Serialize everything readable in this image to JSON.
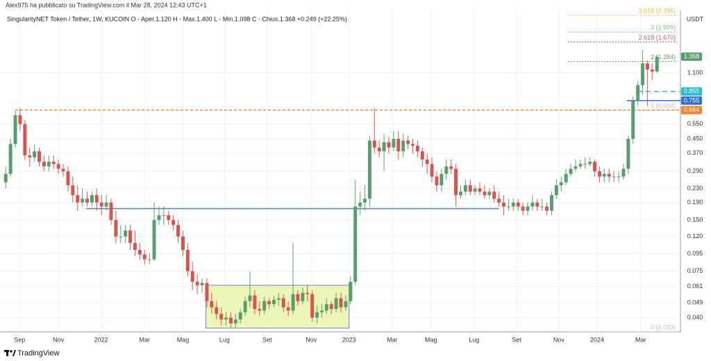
{
  "header": {
    "text": "Alex975 ha pubblicato su TradingView.com il Mar 28, 2024 12:43 UTC+1"
  },
  "footer": {
    "brand": "TradingView"
  },
  "chart_data": {
    "type": "candlestick",
    "title": "SingularityNET Token / Tether, 1W, KUCOIN  O - Aper.1.120  H - Max.1.400  L - Min.1.098  C - Chius.1.368  +0.249 (+22.25%)",
    "y_unit": "USDT",
    "log_scale": true,
    "grid": true,
    "up_color": "#5a9e6f",
    "down_color": "#d9544f",
    "xlim": [
      -1.2,
      140.9
    ],
    "xticks": [
      {
        "value": 2.9,
        "label": "Sep"
      },
      {
        "value": 11.0,
        "label": "Nov"
      },
      {
        "value": 19.9,
        "label": "2022"
      },
      {
        "value": 29.0,
        "label": "Mar"
      },
      {
        "value": 37.0,
        "label": "Mag"
      },
      {
        "value": 45.7,
        "label": "Lug"
      },
      {
        "value": 54.6,
        "label": "Set"
      },
      {
        "value": 63.8,
        "label": "Nov"
      },
      {
        "value": 71.7,
        "label": "2023"
      },
      {
        "value": 80.7,
        "label": "Mar"
      },
      {
        "value": 88.8,
        "label": "Mag"
      },
      {
        "value": 97.8,
        "label": "Lug"
      },
      {
        "value": 106.7,
        "label": "Set"
      },
      {
        "value": 115.5,
        "label": "Nov"
      },
      {
        "value": 123.5,
        "label": "2024"
      },
      {
        "value": 132.6,
        "label": "Mar"
      }
    ],
    "ylim": [
      0.033,
      2.56
    ],
    "yticks": [
      {
        "value": 0.04,
        "label": "0.040"
      },
      0.049,
      0.061,
      0.075,
      0.095,
      {
        "value": 0.12,
        "label": "0.120"
      },
      {
        "value": 0.15,
        "label": "0.150"
      },
      {
        "value": 0.19,
        "label": "0.190"
      },
      {
        "value": 0.23,
        "label": "0.230"
      },
      {
        "value": 0.29,
        "label": "0.290"
      },
      {
        "value": 0.37,
        "label": "0.370"
      },
      {
        "value": 0.45,
        "label": "0.450"
      },
      {
        "value": 0.55,
        "label": "0.550"
      },
      {
        "value": 1.1,
        "label": "1.100"
      }
    ],
    "open": [
      0.25,
      0.28,
      0.42,
      0.62,
      0.55,
      0.36,
      0.35,
      0.38,
      0.33,
      0.31,
      0.33,
      0.32,
      0.3,
      0.29,
      0.24,
      0.21,
      0.19,
      0.2,
      0.19,
      0.21,
      0.19,
      0.18,
      0.19,
      0.15,
      0.12,
      0.12,
      0.13,
      0.11,
      0.1,
      0.094,
      0.088,
      0.088,
      0.15,
      0.16,
      0.16,
      0.15,
      0.14,
      0.12,
      0.1,
      0.075,
      0.065,
      0.062,
      0.064,
      0.05,
      0.046,
      0.042,
      0.039,
      0.04,
      0.037,
      0.039,
      0.043,
      0.05,
      0.054,
      0.045,
      0.044,
      0.05,
      0.048,
      0.051,
      0.052,
      0.046,
      0.044,
      0.055,
      0.05,
      0.056,
      0.055,
      0.04,
      0.043,
      0.044,
      0.048,
      0.045,
      0.052,
      0.046,
      0.05,
      0.065,
      0.18,
      0.19,
      0.2,
      0.44,
      0.4,
      0.38,
      0.43,
      0.4,
      0.45,
      0.38,
      0.44,
      0.42,
      0.41,
      0.38,
      0.34,
      0.32,
      0.27,
      0.24,
      0.28,
      0.31,
      0.3,
      0.21,
      0.22,
      0.24,
      0.22,
      0.23,
      0.22,
      0.21,
      0.22,
      0.2,
      0.19,
      0.18,
      0.18,
      0.19,
      0.18,
      0.17,
      0.18,
      0.19,
      0.18,
      0.18,
      0.17,
      0.21,
      0.24,
      0.25,
      0.28,
      0.3,
      0.31,
      0.32,
      0.32,
      0.33,
      0.29,
      0.27,
      0.28,
      0.27,
      0.27,
      0.27,
      0.3,
      0.45,
      0.75,
      0.93,
      1.25,
      1.15,
      1.12
    ],
    "high": [
      0.31,
      0.45,
      0.66,
      0.68,
      0.58,
      0.4,
      0.42,
      0.4,
      0.36,
      0.36,
      0.36,
      0.34,
      0.32,
      0.31,
      0.27,
      0.24,
      0.23,
      0.22,
      0.22,
      0.23,
      0.21,
      0.21,
      0.2,
      0.17,
      0.14,
      0.14,
      0.14,
      0.13,
      0.11,
      0.1,
      0.096,
      0.19,
      0.18,
      0.18,
      0.17,
      0.16,
      0.15,
      0.13,
      0.11,
      0.085,
      0.072,
      0.068,
      0.068,
      0.056,
      0.05,
      0.046,
      0.043,
      0.043,
      0.042,
      0.045,
      0.053,
      0.075,
      0.058,
      0.05,
      0.053,
      0.052,
      0.054,
      0.056,
      0.055,
      0.05,
      0.11,
      0.058,
      0.06,
      0.062,
      0.058,
      0.047,
      0.048,
      0.052,
      0.05,
      0.056,
      0.056,
      0.054,
      0.07,
      0.26,
      0.22,
      0.24,
      0.47,
      0.68,
      0.44,
      0.48,
      0.46,
      0.5,
      0.5,
      0.48,
      0.47,
      0.45,
      0.44,
      0.4,
      0.37,
      0.35,
      0.29,
      0.3,
      0.34,
      0.34,
      0.32,
      0.24,
      0.26,
      0.26,
      0.24,
      0.25,
      0.24,
      0.23,
      0.24,
      0.22,
      0.21,
      0.2,
      0.2,
      0.2,
      0.19,
      0.19,
      0.21,
      0.2,
      0.2,
      0.19,
      0.22,
      0.26,
      0.27,
      0.3,
      0.32,
      0.34,
      0.34,
      0.35,
      0.35,
      0.34,
      0.31,
      0.3,
      0.3,
      0.29,
      0.29,
      0.32,
      0.47,
      0.8,
      0.98,
      1.5,
      1.3,
      1.25,
      1.4
    ],
    "low": [
      0.23,
      0.27,
      0.4,
      0.5,
      0.34,
      0.31,
      0.33,
      0.31,
      0.29,
      0.29,
      0.3,
      0.28,
      0.27,
      0.22,
      0.19,
      0.17,
      0.18,
      0.18,
      0.18,
      0.17,
      0.16,
      0.17,
      0.14,
      0.11,
      0.11,
      0.11,
      0.1,
      0.092,
      0.088,
      0.082,
      0.082,
      0.086,
      0.14,
      0.14,
      0.14,
      0.13,
      0.11,
      0.092,
      0.07,
      0.058,
      0.055,
      0.056,
      0.046,
      0.042,
      0.039,
      0.036,
      0.036,
      0.035,
      0.035,
      0.037,
      0.041,
      0.046,
      0.042,
      0.041,
      0.042,
      0.045,
      0.046,
      0.047,
      0.043,
      0.041,
      0.042,
      0.047,
      0.048,
      0.05,
      0.038,
      0.037,
      0.04,
      0.042,
      0.042,
      0.043,
      0.043,
      0.044,
      0.048,
      0.062,
      0.16,
      0.17,
      0.18,
      0.37,
      0.35,
      0.29,
      0.37,
      0.38,
      0.34,
      0.35,
      0.39,
      0.37,
      0.35,
      0.31,
      0.28,
      0.25,
      0.22,
      0.22,
      0.26,
      0.28,
      0.18,
      0.2,
      0.21,
      0.21,
      0.21,
      0.21,
      0.2,
      0.2,
      0.19,
      0.18,
      0.16,
      0.17,
      0.17,
      0.17,
      0.16,
      0.16,
      0.17,
      0.17,
      0.17,
      0.16,
      0.16,
      0.2,
      0.22,
      0.24,
      0.27,
      0.29,
      0.3,
      0.3,
      0.31,
      0.27,
      0.25,
      0.25,
      0.25,
      0.25,
      0.25,
      0.26,
      0.28,
      0.42,
      0.7,
      0.82,
      0.7,
      1.0,
      1.098
    ],
    "close": [
      0.28,
      0.42,
      0.62,
      0.55,
      0.36,
      0.35,
      0.38,
      0.33,
      0.31,
      0.33,
      0.32,
      0.3,
      0.29,
      0.24,
      0.21,
      0.19,
      0.2,
      0.19,
      0.21,
      0.19,
      0.18,
      0.19,
      0.15,
      0.12,
      0.12,
      0.13,
      0.11,
      0.1,
      0.094,
      0.088,
      0.088,
      0.15,
      0.16,
      0.16,
      0.15,
      0.14,
      0.12,
      0.1,
      0.075,
      0.065,
      0.062,
      0.064,
      0.05,
      0.046,
      0.042,
      0.039,
      0.04,
      0.037,
      0.039,
      0.043,
      0.05,
      0.054,
      0.045,
      0.044,
      0.05,
      0.048,
      0.051,
      0.052,
      0.046,
      0.044,
      0.055,
      0.05,
      0.056,
      0.055,
      0.04,
      0.043,
      0.044,
      0.048,
      0.045,
      0.052,
      0.046,
      0.05,
      0.065,
      0.18,
      0.19,
      0.2,
      0.44,
      0.4,
      0.38,
      0.43,
      0.4,
      0.45,
      0.38,
      0.44,
      0.42,
      0.41,
      0.38,
      0.34,
      0.32,
      0.27,
      0.24,
      0.28,
      0.31,
      0.3,
      0.21,
      0.22,
      0.24,
      0.22,
      0.23,
      0.22,
      0.21,
      0.22,
      0.2,
      0.19,
      0.18,
      0.18,
      0.19,
      0.18,
      0.17,
      0.18,
      0.19,
      0.18,
      0.18,
      0.17,
      0.21,
      0.24,
      0.25,
      0.28,
      0.3,
      0.31,
      0.32,
      0.32,
      0.33,
      0.29,
      0.27,
      0.28,
      0.27,
      0.27,
      0.27,
      0.3,
      0.45,
      0.75,
      0.93,
      1.25,
      1.15,
      1.12,
      1.368
    ],
    "lines": [
      {
        "value": 0.664,
        "from": 2,
        "to": 140.9,
        "color": "#f5862e",
        "dash": true
      },
      {
        "value": 0.175,
        "from": 16.8,
        "to": 103,
        "color": "#4a7fd6",
        "dash": false
      },
      {
        "value": 0.755,
        "from": 129.7,
        "to": 140.9,
        "color": "#2e6fe0",
        "dash": false
      },
      {
        "value": 0.855,
        "from": 131.9,
        "to": 140.9,
        "color": "#2bbcd4",
        "dash": true
      }
    ],
    "box": {
      "low": 0.0347,
      "high": 0.062,
      "from": 41.8,
      "to": 71.7,
      "color": "#eef5b8",
      "border": "#6b86c9"
    },
    "fib_levels": [
      {
        "value": 2.395,
        "label": "3.618 (2.395)",
        "color": "#f2b84a"
      },
      {
        "value": 1.909,
        "label": "3 (1.909)",
        "color": "#7cc49a"
      },
      {
        "value": 1.67,
        "label": "2.618 (1.670)",
        "color": "#e0566a"
      },
      {
        "value": 1.284,
        "label": "2 (1.284)",
        "color": "#5a9e6f"
      },
      {
        "value": 0.664,
        "label": "1 (0.664)",
        "color": "#c0c0c0"
      },
      {
        "value": 0.033,
        "label": "0 (0.033)",
        "color": "#c0c0c0"
      }
    ],
    "fib_from": 117.4,
    "fib_to": 140.2,
    "price_labels": [
      {
        "value": 1.368,
        "color": "#5a9e6f"
      },
      {
        "value": 0.855,
        "color": "#2bbcd4"
      },
      {
        "value": 0.755,
        "color": "#2e6fe0"
      },
      {
        "value": 0.664,
        "color": "#f5862e"
      }
    ]
  }
}
